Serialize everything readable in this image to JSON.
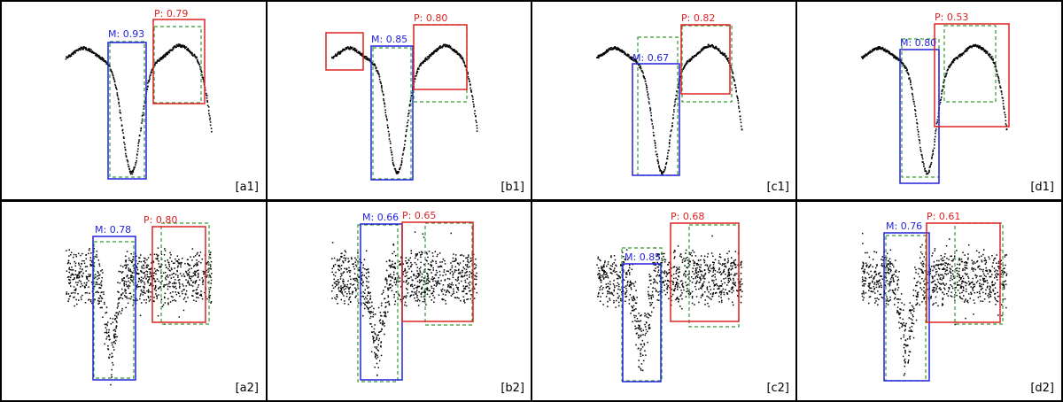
{
  "colors": {
    "main": "#2222dd",
    "pred": "#dd2222",
    "truth": "#339933",
    "points": "#000000"
  },
  "panels": [
    {
      "tag": "[a1]",
      "curve": "smooth",
      "main": "M: 0.93",
      "pred": "P: 0.79"
    },
    {
      "tag": "[b1]",
      "curve": "smooth",
      "main": "M: 0.85",
      "pred": "P: 0.80"
    },
    {
      "tag": "[c1]",
      "curve": "smooth",
      "main": "M: 0.67",
      "pred": "P: 0.82"
    },
    {
      "tag": "[d1]",
      "curve": "smooth",
      "main": "M: 0.80",
      "pred": "P: 0.53"
    },
    {
      "tag": "[a2]",
      "curve": "noisy",
      "main": "M: 0.78",
      "pred": "P: 0.80"
    },
    {
      "tag": "[b2]",
      "curve": "noisy",
      "main": "M: 0.66",
      "pred": "P: 0.65"
    },
    {
      "tag": "[c2]",
      "curve": "noisy",
      "main": "M: 0.85",
      "pred": "P: 0.68"
    },
    {
      "tag": "[d2]",
      "curve": "noisy",
      "main": "M: 0.76",
      "pred": "P: 0.61"
    }
  ]
}
